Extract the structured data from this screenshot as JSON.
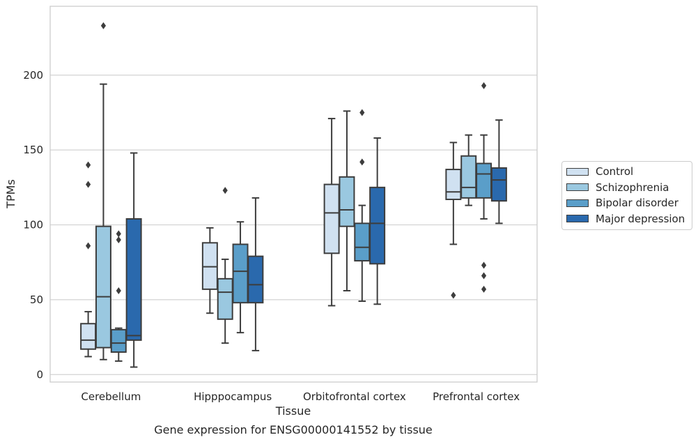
{
  "chart_data": {
    "type": "box",
    "title": "Gene expression for ENSG00000141552 by tissue",
    "xlabel": "Tissue",
    "ylabel": "TPMs",
    "ylim": [
      -5,
      246
    ],
    "yticks": [
      0,
      50,
      100,
      150,
      200
    ],
    "grid": true,
    "legend_position": "right",
    "categories": [
      "Cerebellum",
      "Hipppocampus",
      "Orbitofrontal cortex",
      "Prefrontal cortex"
    ],
    "series": [
      {
        "name": "Control",
        "color": "#d0e1f1",
        "boxes": [
          {
            "whislo": 12,
            "q1": 17,
            "med": 23,
            "q3": 34,
            "whishi": 42,
            "fliers": [
              86,
              127,
              140
            ]
          },
          {
            "whislo": 41,
            "q1": 57,
            "med": 72,
            "q3": 88,
            "whishi": 98,
            "fliers": []
          },
          {
            "whislo": 46,
            "q1": 81,
            "med": 108,
            "q3": 127,
            "whishi": 171,
            "fliers": []
          },
          {
            "whislo": 87,
            "q1": 117,
            "med": 122,
            "q3": 137,
            "whishi": 155,
            "fliers": [
              53
            ]
          }
        ]
      },
      {
        "name": "Schizophrenia",
        "color": "#9ac8e0",
        "boxes": [
          {
            "whislo": 10,
            "q1": 18,
            "med": 52,
            "q3": 99,
            "whishi": 194,
            "fliers": [
              233
            ]
          },
          {
            "whislo": 21,
            "q1": 37,
            "med": 55,
            "q3": 64,
            "whishi": 77,
            "fliers": [
              123
            ]
          },
          {
            "whislo": 56,
            "q1": 99,
            "med": 110,
            "q3": 132,
            "whishi": 176,
            "fliers": []
          },
          {
            "whislo": 113,
            "q1": 118,
            "med": 125,
            "q3": 146,
            "whishi": 160,
            "fliers": []
          }
        ]
      },
      {
        "name": "Bipolar disorder",
        "color": "#5a9ec9",
        "boxes": [
          {
            "whislo": 9,
            "q1": 15,
            "med": 21,
            "q3": 30,
            "whishi": 31,
            "fliers": [
              56,
              90,
              94
            ]
          },
          {
            "whislo": 28,
            "q1": 48,
            "med": 69,
            "q3": 87,
            "whishi": 102,
            "fliers": []
          },
          {
            "whislo": 49,
            "q1": 76,
            "med": 85,
            "q3": 101,
            "whishi": 113,
            "fliers": [
              142,
              175
            ]
          },
          {
            "whislo": 104,
            "q1": 118,
            "med": 134,
            "q3": 141,
            "whishi": 160,
            "fliers": [
              57,
              66,
              73,
              193
            ]
          }
        ]
      },
      {
        "name": "Major depression",
        "color": "#2a69ad",
        "boxes": [
          {
            "whislo": 5,
            "q1": 23,
            "med": 26,
            "q3": 104,
            "whishi": 148,
            "fliers": []
          },
          {
            "whislo": 16,
            "q1": 48,
            "med": 60,
            "q3": 79,
            "whishi": 118,
            "fliers": []
          },
          {
            "whislo": 47,
            "q1": 74,
            "med": 101,
            "q3": 125,
            "whishi": 158,
            "fliers": []
          },
          {
            "whislo": 101,
            "q1": 116,
            "med": 130,
            "q3": 138,
            "whishi": 170,
            "fliers": []
          }
        ]
      }
    ]
  }
}
